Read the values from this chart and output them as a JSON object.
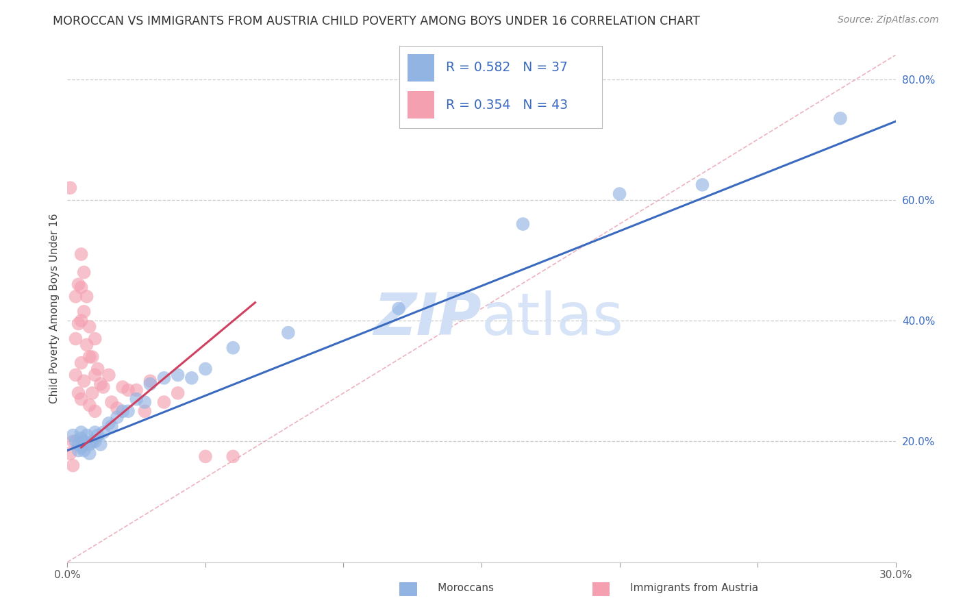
{
  "title": "MOROCCAN VS IMMIGRANTS FROM AUSTRIA CHILD POVERTY AMONG BOYS UNDER 16 CORRELATION CHART",
  "source": "Source: ZipAtlas.com",
  "ylabel": "Child Poverty Among Boys Under 16",
  "xlim": [
    0.0,
    0.3
  ],
  "ylim": [
    0.0,
    0.84
  ],
  "blue_R": 0.582,
  "blue_N": 37,
  "pink_R": 0.354,
  "pink_N": 43,
  "blue_color": "#92b4e3",
  "pink_color": "#f4a0b0",
  "blue_line_color": "#3a6abf",
  "pink_line_color": "#d04060",
  "diag_line_color": "#e8a0b0",
  "title_fontsize": 12.5,
  "source_fontsize": 10,
  "watermark_color": "#d0dff5",
  "background_color": "#ffffff",
  "blue_scatter_x": [
    0.002,
    0.003,
    0.004,
    0.004,
    0.005,
    0.005,
    0.005,
    0.006,
    0.006,
    0.007,
    0.008,
    0.008,
    0.009,
    0.01,
    0.01,
    0.011,
    0.012,
    0.013,
    0.015,
    0.016,
    0.018,
    0.02,
    0.022,
    0.025,
    0.028,
    0.03,
    0.035,
    0.04,
    0.045,
    0.05,
    0.06,
    0.08,
    0.12,
    0.165,
    0.2,
    0.23,
    0.28
  ],
  "blue_scatter_y": [
    0.21,
    0.2,
    0.195,
    0.185,
    0.215,
    0.205,
    0.19,
    0.2,
    0.185,
    0.21,
    0.195,
    0.18,
    0.2,
    0.215,
    0.2,
    0.21,
    0.195,
    0.215,
    0.23,
    0.225,
    0.24,
    0.25,
    0.25,
    0.27,
    0.265,
    0.295,
    0.305,
    0.31,
    0.305,
    0.32,
    0.355,
    0.38,
    0.42,
    0.56,
    0.61,
    0.625,
    0.735
  ],
  "pink_scatter_x": [
    0.001,
    0.001,
    0.002,
    0.002,
    0.003,
    0.003,
    0.003,
    0.004,
    0.004,
    0.004,
    0.005,
    0.005,
    0.005,
    0.005,
    0.005,
    0.006,
    0.006,
    0.006,
    0.007,
    0.007,
    0.008,
    0.008,
    0.008,
    0.009,
    0.009,
    0.01,
    0.01,
    0.01,
    0.011,
    0.012,
    0.013,
    0.015,
    0.016,
    0.018,
    0.02,
    0.022,
    0.025,
    0.028,
    0.03,
    0.035,
    0.04,
    0.05,
    0.06
  ],
  "pink_scatter_y": [
    0.62,
    0.18,
    0.2,
    0.16,
    0.44,
    0.37,
    0.31,
    0.46,
    0.395,
    0.28,
    0.51,
    0.455,
    0.4,
    0.33,
    0.27,
    0.48,
    0.415,
    0.3,
    0.44,
    0.36,
    0.39,
    0.34,
    0.26,
    0.34,
    0.28,
    0.37,
    0.31,
    0.25,
    0.32,
    0.295,
    0.29,
    0.31,
    0.265,
    0.255,
    0.29,
    0.285,
    0.285,
    0.25,
    0.3,
    0.265,
    0.28,
    0.175,
    0.175
  ],
  "grid_color": "#cccccc",
  "tick_color": "#555555",
  "right_tick_color": "#3a6abf"
}
